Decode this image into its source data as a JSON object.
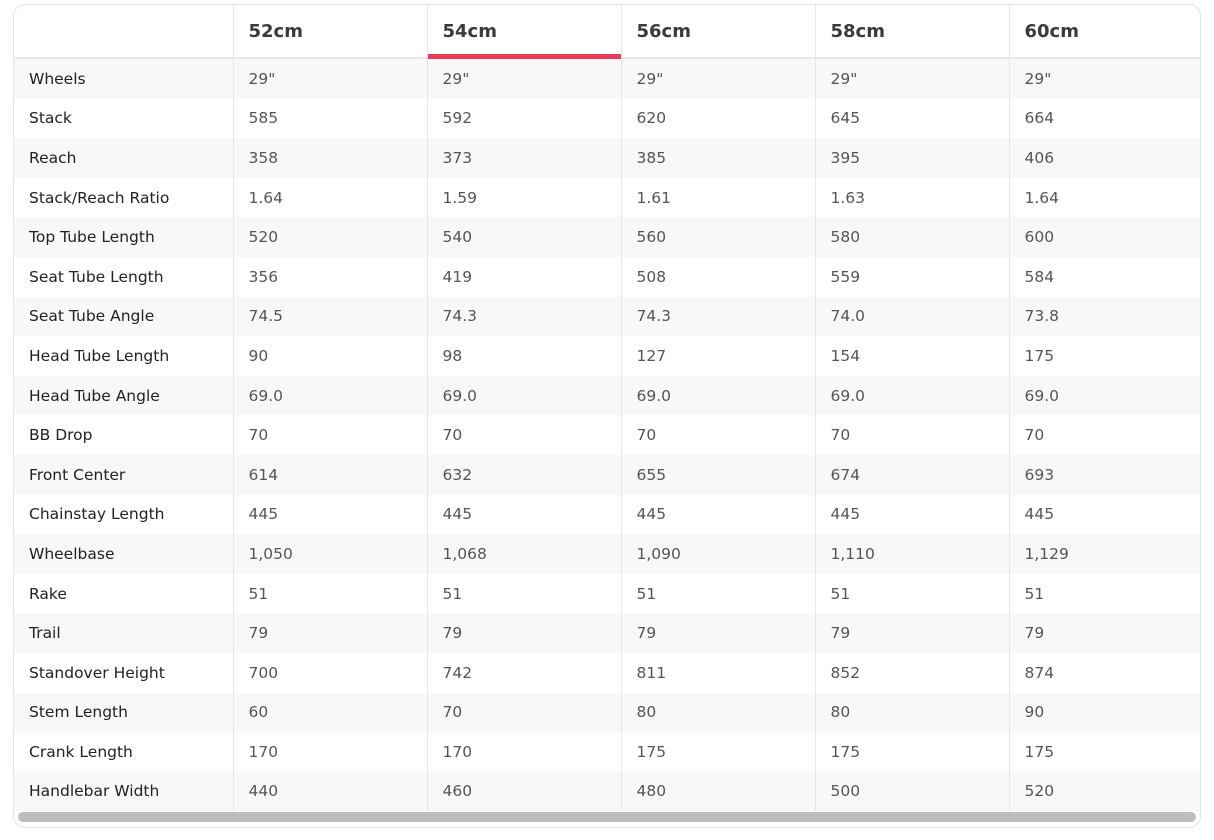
{
  "columns": [
    "",
    "52cm",
    "54cm",
    "56cm",
    "58cm",
    "60cm"
  ],
  "active_column": "54cm",
  "accent_color": "#ee3a59",
  "rows": [
    {
      "label": "Wheels",
      "values": [
        "29\"",
        "29\"",
        "29\"",
        "29\"",
        "29\""
      ]
    },
    {
      "label": "Stack",
      "values": [
        "585",
        "592",
        "620",
        "645",
        "664"
      ]
    },
    {
      "label": "Reach",
      "values": [
        "358",
        "373",
        "385",
        "395",
        "406"
      ]
    },
    {
      "label": "Stack/Reach Ratio",
      "values": [
        "1.64",
        "1.59",
        "1.61",
        "1.63",
        "1.64"
      ]
    },
    {
      "label": "Top Tube Length",
      "values": [
        "520",
        "540",
        "560",
        "580",
        "600"
      ]
    },
    {
      "label": "Seat Tube Length",
      "values": [
        "356",
        "419",
        "508",
        "559",
        "584"
      ]
    },
    {
      "label": "Seat Tube Angle",
      "values": [
        "74.5",
        "74.3",
        "74.3",
        "74.0",
        "73.8"
      ]
    },
    {
      "label": "Head Tube Length",
      "values": [
        "90",
        "98",
        "127",
        "154",
        "175"
      ]
    },
    {
      "label": "Head Tube Angle",
      "values": [
        "69.0",
        "69.0",
        "69.0",
        "69.0",
        "69.0"
      ]
    },
    {
      "label": "BB Drop",
      "values": [
        "70",
        "70",
        "70",
        "70",
        "70"
      ]
    },
    {
      "label": "Front Center",
      "values": [
        "614",
        "632",
        "655",
        "674",
        "693"
      ]
    },
    {
      "label": "Chainstay Length",
      "values": [
        "445",
        "445",
        "445",
        "445",
        "445"
      ]
    },
    {
      "label": "Wheelbase",
      "values": [
        "1,050",
        "1,068",
        "1,090",
        "1,110",
        "1,129"
      ]
    },
    {
      "label": "Rake",
      "values": [
        "51",
        "51",
        "51",
        "51",
        "51"
      ]
    },
    {
      "label": "Trail",
      "values": [
        "79",
        "79",
        "79",
        "79",
        "79"
      ]
    },
    {
      "label": "Standover Height",
      "values": [
        "700",
        "742",
        "811",
        "852",
        "874"
      ]
    },
    {
      "label": "Stem Length",
      "values": [
        "60",
        "70",
        "80",
        "80",
        "90"
      ]
    },
    {
      "label": "Crank Length",
      "values": [
        "170",
        "170",
        "175",
        "175",
        "175"
      ]
    },
    {
      "label": "Handlebar Width",
      "values": [
        "440",
        "460",
        "480",
        "500",
        "520"
      ]
    }
  ]
}
